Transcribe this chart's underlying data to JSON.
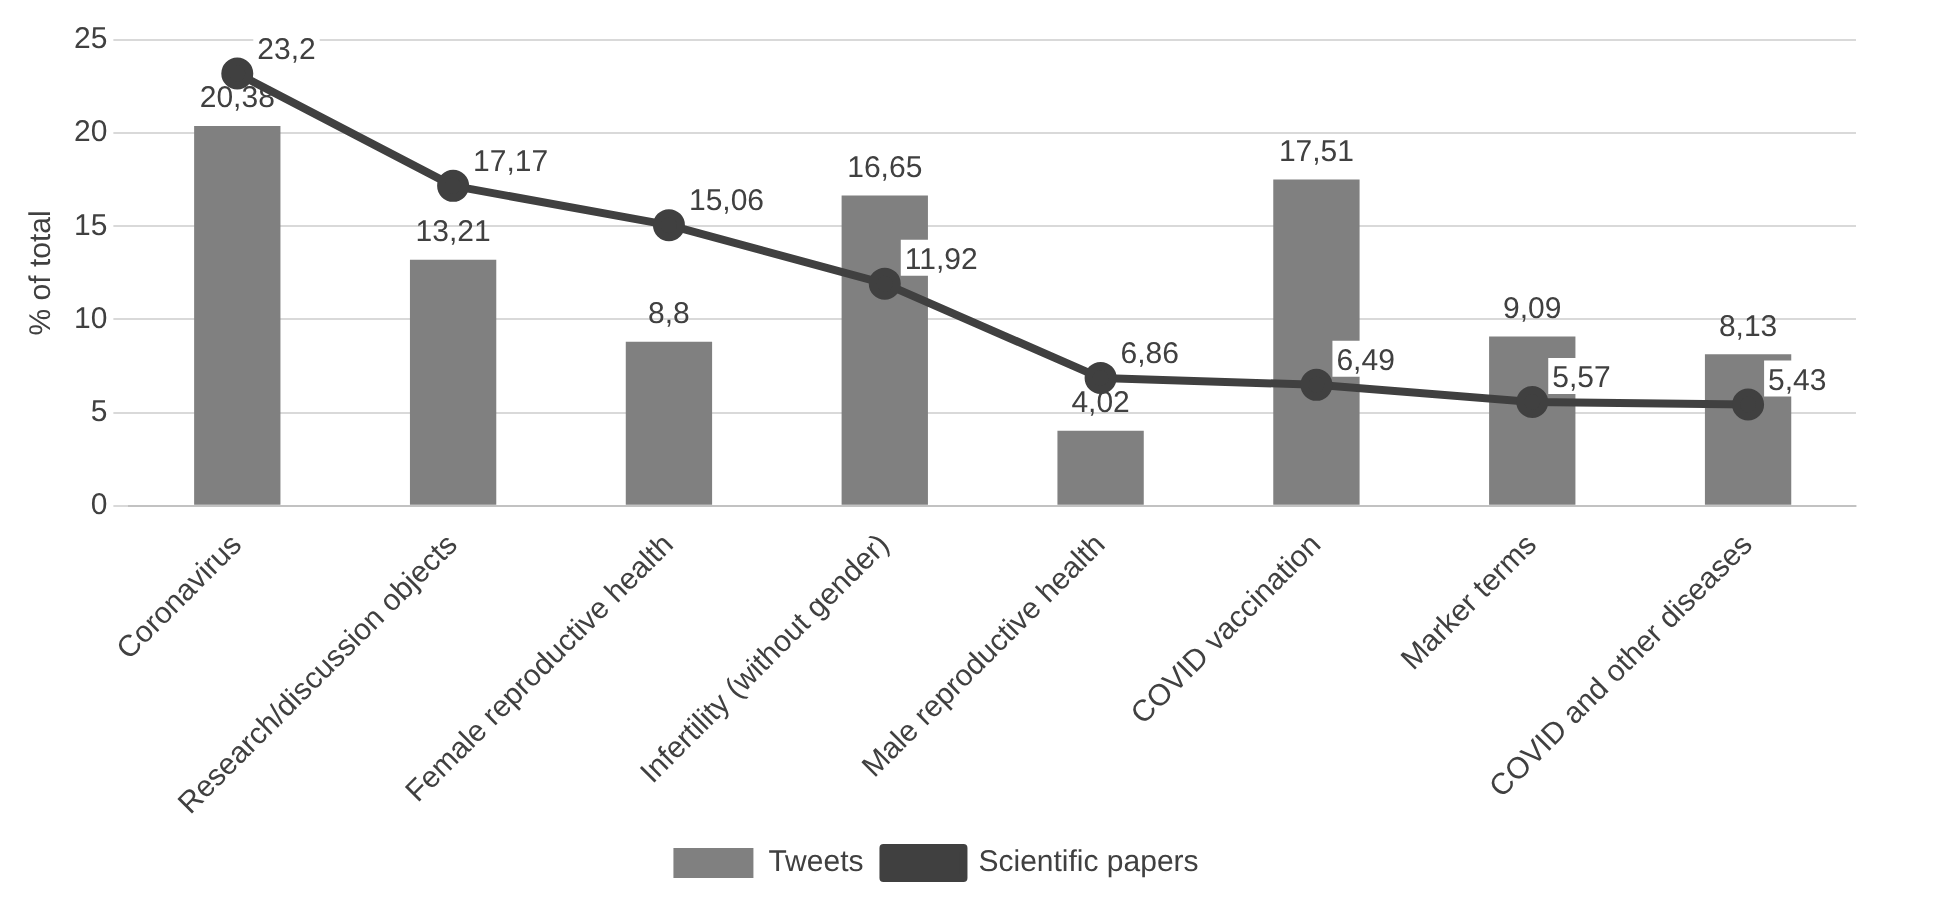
{
  "chart_data": {
    "type": "bar",
    "ylabel": "% of total",
    "categories": [
      "Coronavirus",
      "Research/discussion objects",
      "Female reproductive health",
      "Infertility (without gender)",
      "Male reproductive health",
      "COVID vaccination",
      "Marker terms",
      "COVID and other diseases"
    ],
    "series": [
      {
        "name": "Tweets",
        "color": "#808080",
        "values": [
          20.38,
          13.21,
          8.8,
          16.65,
          4.02,
          17.51,
          9.09,
          8.13
        ],
        "value_labels": [
          "20,38",
          "13,21",
          "8,8",
          "16,65",
          "4,02",
          "17,51",
          "9,09",
          "8,13"
        ]
      },
      {
        "name": "Scientific papers",
        "type": "line",
        "color": "#404040",
        "marker": "circle",
        "values": [
          23.2,
          17.17,
          15.06,
          11.92,
          6.86,
          6.49,
          5.57,
          5.43
        ],
        "value_labels": [
          "23,2",
          "17,17",
          "15,06",
          "11,92",
          "6,86",
          "6,49",
          "5,57",
          "5,43"
        ]
      }
    ],
    "ylim": [
      0,
      25
    ],
    "yticks": [
      0,
      5,
      10,
      15,
      20,
      25
    ],
    "grid": "y",
    "legend": "bottom"
  }
}
